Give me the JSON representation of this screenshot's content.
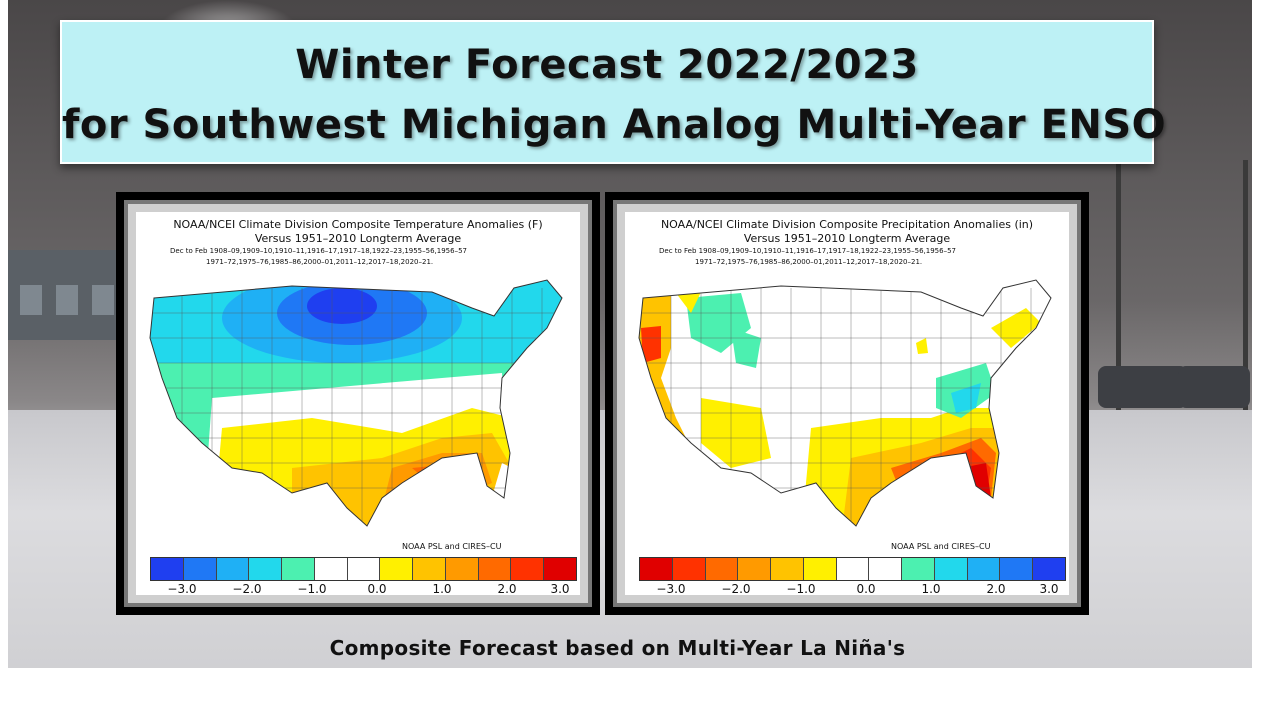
{
  "title": {
    "line1": "Winter Forecast 2022/2023",
    "line2": "for Southwest Michigan  Analog Multi-Year ENSO"
  },
  "panels": [
    {
      "heading": "NOAA/NCEI Climate Division Composite Temperature Anomalies (F)",
      "subheading": "Versus 1951–2010 Longterm Average",
      "years_line1": "Dec to Feb   1908–09,1909–10,1910–11,1916–17,1917–18,1922–23,1955–56,1956–57",
      "years_line2": "1971–72,1975–76,1985–86,2000–01,2011–12,2017–18,2020–21.",
      "credit": "NOAA PSL and CIRES–CU",
      "colorbar": [
        "#1f3ff0",
        "#1f78f5",
        "#1fb0f5",
        "#22d8ec",
        "#4cf0b0",
        "#ffffff",
        "#ffffff",
        "#fff000",
        "#ffc300",
        "#ff9a00",
        "#ff6a00",
        "#ff3200",
        "#e00000"
      ],
      "ticks": [
        "−3.0",
        "−2.0",
        "−1.0",
        "0.0",
        "1.0",
        "2.0",
        "3.0"
      ]
    },
    {
      "heading": "NOAA/NCEI Climate Division Composite Precipitation Anomalies (in)",
      "subheading": "Versus 1951–2010 Longterm Average",
      "years_line1": "Dec to Feb   1908–09,1909–10,1910–11,1916–17,1917–18,1922–23,1955–56,1956–57",
      "years_line2": "1971–72,1975–76,1985–86,2000–01,2011–12,2017–18,2020–21.",
      "credit": "NOAA PSL and CIRES–CU",
      "colorbar": [
        "#e00000",
        "#ff3200",
        "#ff6a00",
        "#ff9a00",
        "#ffc300",
        "#fff000",
        "#ffffff",
        "#ffffff",
        "#4cf0b0",
        "#22d8ec",
        "#1fb0f5",
        "#1f78f5",
        "#1f3ff0"
      ],
      "ticks": [
        "−3.0",
        "−2.0",
        "−1.0",
        "0.0",
        "1.0",
        "2.0",
        "3.0"
      ]
    }
  ],
  "caption": "Composite Forecast based on  Multi-Year La Niña's"
}
